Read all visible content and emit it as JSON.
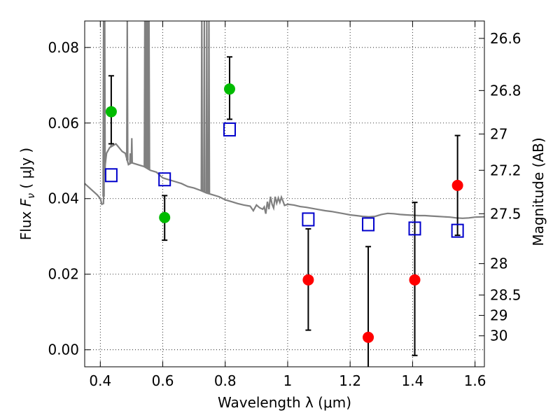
{
  "chart_data": {
    "type": "scatter",
    "xlabel": "Wavelength  λ (μm)",
    "ylabel": "Flux  F_ν  ( μJy )",
    "ylabel_parts": {
      "prefix": "Flux  ",
      "symbol": "F",
      "subscript": "ν",
      "suffix": "  ( μJy )"
    },
    "y2label": "Magnitude (AB)",
    "xlim": [
      0.35,
      1.63
    ],
    "ylim": [
      -0.0045,
      0.087
    ],
    "grid": true,
    "x_ticks": [
      0.4,
      0.6,
      0.8,
      1.0,
      1.2,
      1.4,
      1.6
    ],
    "x_tick_labels": [
      "0.4",
      "0.6",
      "0.8",
      "1",
      "1.2",
      "1.4",
      "1.6"
    ],
    "y_ticks": [
      0.0,
      0.02,
      0.04,
      0.06,
      0.08
    ],
    "y_tick_labels": [
      "0.00",
      "0.02",
      "0.04",
      "0.06",
      "0.08"
    ],
    "y2_ticks": [
      {
        "label": "26.6",
        "flux": 0.0824
      },
      {
        "label": "26.8",
        "flux": 0.0686
      },
      {
        "label": "27",
        "flux": 0.0571
      },
      {
        "label": "27.2",
        "flux": 0.0475
      },
      {
        "label": "27.5",
        "flux": 0.036
      },
      {
        "label": "28",
        "flux": 0.0228
      },
      {
        "label": "28.5",
        "flux": 0.0145
      },
      {
        "label": "29",
        "flux": 0.0091
      },
      {
        "label": "30",
        "flux": 0.0037
      }
    ],
    "observed_points": [
      {
        "x": 0.435,
        "y": 0.063,
        "yerr_low": 0.0085,
        "yerr_high": 0.0095,
        "color": "#00bb00"
      },
      {
        "x": 0.606,
        "y": 0.035,
        "yerr_low": 0.006,
        "yerr_high": 0.0058,
        "color": "#00bb00"
      },
      {
        "x": 0.814,
        "y": 0.069,
        "yerr_low": 0.008,
        "yerr_high": 0.0085,
        "color": "#00bb00"
      },
      {
        "x": 1.066,
        "y": 0.0185,
        "yerr_low": 0.0133,
        "yerr_high": 0.0135,
        "color": "#ff0000"
      },
      {
        "x": 1.258,
        "y": 0.0033,
        "yerr_low": 0.01,
        "yerr_high": 0.024,
        "color": "#ff0000"
      },
      {
        "x": 1.407,
        "y": 0.0185,
        "yerr_low": 0.02,
        "yerr_high": 0.0205,
        "color": "#ff0000"
      },
      {
        "x": 1.544,
        "y": 0.0435,
        "yerr_low": 0.0132,
        "yerr_high": 0.0132,
        "color": "#ff0000"
      }
    ],
    "model_points": [
      {
        "x": 0.435,
        "y": 0.0462
      },
      {
        "x": 0.606,
        "y": 0.0451
      },
      {
        "x": 0.814,
        "y": 0.0583
      },
      {
        "x": 1.066,
        "y": 0.0345
      },
      {
        "x": 1.258,
        "y": 0.0332
      },
      {
        "x": 1.407,
        "y": 0.0321
      },
      {
        "x": 1.544,
        "y": 0.0315
      }
    ],
    "model_spectrum": [
      [
        0.35,
        0.044
      ],
      [
        0.37,
        0.0425
      ],
      [
        0.39,
        0.041
      ],
      [
        0.4,
        0.04
      ],
      [
        0.405,
        0.0385
      ],
      [
        0.41,
        0.0387
      ],
      [
        0.412,
        0.046
      ],
      [
        0.415,
        0.0485
      ],
      [
        0.42,
        0.052
      ],
      [
        0.43,
        0.0535
      ],
      [
        0.44,
        0.054
      ],
      [
        0.45,
        0.0545
      ],
      [
        0.46,
        0.0535
      ],
      [
        0.47,
        0.0525
      ],
      [
        0.48,
        0.052
      ],
      [
        0.49,
        0.049
      ],
      [
        0.5,
        0.0495
      ],
      [
        0.52,
        0.049
      ],
      [
        0.54,
        0.0485
      ],
      [
        0.56,
        0.0475
      ],
      [
        0.58,
        0.047
      ],
      [
        0.6,
        0.0455
      ],
      [
        0.62,
        0.045
      ],
      [
        0.64,
        0.0445
      ],
      [
        0.66,
        0.044
      ],
      [
        0.68,
        0.0432
      ],
      [
        0.7,
        0.0428
      ],
      [
        0.72,
        0.0422
      ],
      [
        0.74,
        0.0415
      ],
      [
        0.76,
        0.041
      ],
      [
        0.78,
        0.0405
      ],
      [
        0.8,
        0.0397
      ],
      [
        0.82,
        0.0392
      ],
      [
        0.84,
        0.0387
      ],
      [
        0.86,
        0.0383
      ],
      [
        0.88,
        0.038
      ],
      [
        0.89,
        0.0368
      ],
      [
        0.9,
        0.0383
      ],
      [
        0.91,
        0.0376
      ],
      [
        0.92,
        0.0372
      ],
      [
        0.925,
        0.0378
      ],
      [
        0.93,
        0.036
      ],
      [
        0.935,
        0.0392
      ],
      [
        0.94,
        0.0372
      ],
      [
        0.945,
        0.0405
      ],
      [
        0.95,
        0.0385
      ],
      [
        0.955,
        0.0375
      ],
      [
        0.96,
        0.0405
      ],
      [
        0.965,
        0.0388
      ],
      [
        0.97,
        0.0402
      ],
      [
        0.975,
        0.039
      ],
      [
        0.98,
        0.0404
      ],
      [
        0.985,
        0.0393
      ],
      [
        0.99,
        0.0382
      ],
      [
        1.0,
        0.0385
      ],
      [
        1.02,
        0.0383
      ],
      [
        1.04,
        0.0379
      ],
      [
        1.06,
        0.0377
      ],
      [
        1.08,
        0.0374
      ],
      [
        1.1,
        0.0371
      ],
      [
        1.12,
        0.0368
      ],
      [
        1.14,
        0.0366
      ],
      [
        1.16,
        0.0363
      ],
      [
        1.18,
        0.036
      ],
      [
        1.2,
        0.0357
      ],
      [
        1.22,
        0.0355
      ],
      [
        1.24,
        0.0353
      ],
      [
        1.26,
        0.0352
      ],
      [
        1.28,
        0.0353
      ],
      [
        1.3,
        0.0358
      ],
      [
        1.32,
        0.0361
      ],
      [
        1.34,
        0.036
      ],
      [
        1.36,
        0.0358
      ],
      [
        1.38,
        0.0357
      ],
      [
        1.4,
        0.0356
      ],
      [
        1.42,
        0.0355
      ],
      [
        1.44,
        0.0355
      ],
      [
        1.46,
        0.0354
      ],
      [
        1.48,
        0.0353
      ],
      [
        1.5,
        0.0352
      ],
      [
        1.52,
        0.0351
      ],
      [
        1.54,
        0.0349
      ],
      [
        1.56,
        0.0348
      ],
      [
        1.58,
        0.0349
      ],
      [
        1.6,
        0.0351
      ],
      [
        1.63,
        0.0352
      ]
    ],
    "emission_lines": [
      {
        "x": 0.4105,
        "peak": 0.087
      },
      {
        "x": 0.414,
        "peak": 0.087
      },
      {
        "x": 0.4342,
        "peak": 0.054
      },
      {
        "x": 0.4365,
        "peak": 0.054
      },
      {
        "x": 0.4863,
        "peak": 0.087
      },
      {
        "x": 0.496,
        "peak": 0.052
      },
      {
        "x": 0.5008,
        "peak": 0.056
      },
      {
        "x": 0.5425,
        "peak": 0.087
      },
      {
        "x": 0.546,
        "peak": 0.087
      },
      {
        "x": 0.55,
        "peak": 0.087
      },
      {
        "x": 0.553,
        "peak": 0.087
      },
      {
        "x": 0.556,
        "peak": 0.087
      },
      {
        "x": 0.725,
        "peak": 0.087
      },
      {
        "x": 0.733,
        "peak": 0.087
      },
      {
        "x": 0.741,
        "peak": 0.087
      },
      {
        "x": 0.748,
        "peak": 0.087
      }
    ],
    "colors": {
      "spectrum": "#808080",
      "model_marker": "#0000cc",
      "errorbar": "#000000",
      "grid": "#000000"
    }
  }
}
